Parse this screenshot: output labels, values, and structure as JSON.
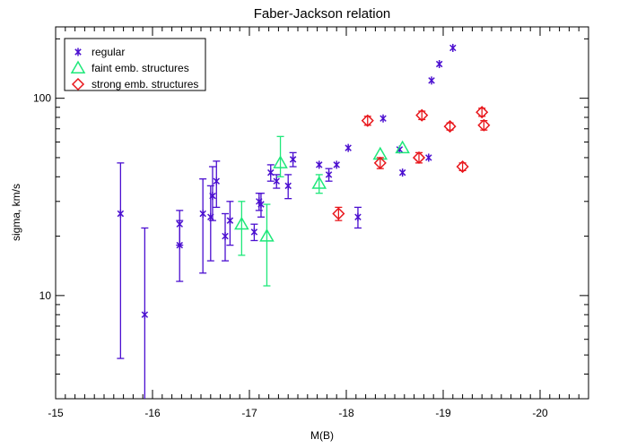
{
  "chart_data": {
    "type": "scatter",
    "title": "Faber-Jackson relation",
    "xlabel": "M(B)",
    "ylabel": "sigma, km/s",
    "xlim": [
      -15,
      -20.5
    ],
    "ylim": [
      3,
      230
    ],
    "yscale": "log",
    "x_ticks": [
      -15,
      -16,
      -17,
      -18,
      -19,
      -20
    ],
    "y_ticks": [
      10,
      100
    ],
    "legend_position": "top-left",
    "series": [
      {
        "name": "regular",
        "marker": "asterisk",
        "color": "#4b0fd0",
        "points": [
          {
            "x": -15.67,
            "y": 26,
            "ylo": 4.8,
            "yhi": 47
          },
          {
            "x": -15.92,
            "y": 8,
            "ylo": 3,
            "yhi": 22
          },
          {
            "x": -16.28,
            "y": 23,
            "ylo": 18,
            "yhi": 27
          },
          {
            "x": -16.28,
            "y": 18,
            "ylo": 11.8,
            "yhi": 24
          },
          {
            "x": -16.52,
            "y": 26,
            "ylo": 13,
            "yhi": 39
          },
          {
            "x": -16.6,
            "y": 25,
            "ylo": 15,
            "yhi": 36
          },
          {
            "x": -16.62,
            "y": 32,
            "ylo": 24,
            "yhi": 45
          },
          {
            "x": -16.66,
            "y": 38,
            "ylo": 28,
            "yhi": 48
          },
          {
            "x": -16.75,
            "y": 20,
            "ylo": 15,
            "yhi": 26
          },
          {
            "x": -16.8,
            "y": 24,
            "ylo": 18,
            "yhi": 30
          },
          {
            "x": -17.05,
            "y": 21,
            "ylo": 19,
            "yhi": 23
          },
          {
            "x": -17.1,
            "y": 30,
            "ylo": 27,
            "yhi": 33
          },
          {
            "x": -17.12,
            "y": 29,
            "ylo": 25,
            "yhi": 33
          },
          {
            "x": -17.22,
            "y": 42,
            "ylo": 38,
            "yhi": 46
          },
          {
            "x": -17.28,
            "y": 38,
            "ylo": 35,
            "yhi": 41
          },
          {
            "x": -17.4,
            "y": 36,
            "ylo": 31,
            "yhi": 41
          },
          {
            "x": -17.45,
            "y": 49,
            "ylo": 45,
            "yhi": 53
          },
          {
            "x": -17.72,
            "y": 46
          },
          {
            "x": -17.82,
            "y": 41,
            "ylo": 38,
            "yhi": 44
          },
          {
            "x": -17.9,
            "y": 46
          },
          {
            "x": -18.02,
            "y": 56
          },
          {
            "x": -18.12,
            "y": 25,
            "ylo": 22,
            "yhi": 28
          },
          {
            "x": -18.38,
            "y": 79
          },
          {
            "x": -18.55,
            "y": 55
          },
          {
            "x": -18.58,
            "y": 42
          },
          {
            "x": -18.85,
            "y": 50
          },
          {
            "x": -18.88,
            "y": 123
          },
          {
            "x": -18.96,
            "y": 149
          },
          {
            "x": -19.1,
            "y": 180
          }
        ]
      },
      {
        "name": "faint emb. structures",
        "marker": "triangle",
        "color": "#1ee87a",
        "points": [
          {
            "x": -16.92,
            "y": 23,
            "ylo": 16,
            "yhi": 30
          },
          {
            "x": -17.18,
            "y": 20,
            "ylo": 11.2,
            "yhi": 29
          },
          {
            "x": -17.32,
            "y": 47,
            "ylo": 40,
            "yhi": 64
          },
          {
            "x": -17.72,
            "y": 37,
            "ylo": 33,
            "yhi": 41
          },
          {
            "x": -18.35,
            "y": 52
          },
          {
            "x": -18.58,
            "y": 56
          }
        ]
      },
      {
        "name": "strong emb. structures",
        "marker": "diamond",
        "color": "#e8161b",
        "points": [
          {
            "x": -17.92,
            "y": 26,
            "ylo": 24,
            "yhi": 28
          },
          {
            "x": -18.22,
            "y": 77,
            "ylo": 73,
            "yhi": 81
          },
          {
            "x": -18.35,
            "y": 47,
            "ylo": 44,
            "yhi": 50
          },
          {
            "x": -18.75,
            "y": 50,
            "ylo": 47,
            "yhi": 53
          },
          {
            "x": -18.78,
            "y": 82,
            "ylo": 78,
            "yhi": 86
          },
          {
            "x": -19.07,
            "y": 72,
            "ylo": 69,
            "yhi": 75
          },
          {
            "x": -19.2,
            "y": 45,
            "ylo": 43,
            "yhi": 47
          },
          {
            "x": -19.4,
            "y": 85,
            "ylo": 81,
            "yhi": 89
          },
          {
            "x": -19.42,
            "y": 73,
            "ylo": 69,
            "yhi": 77
          }
        ]
      }
    ]
  }
}
